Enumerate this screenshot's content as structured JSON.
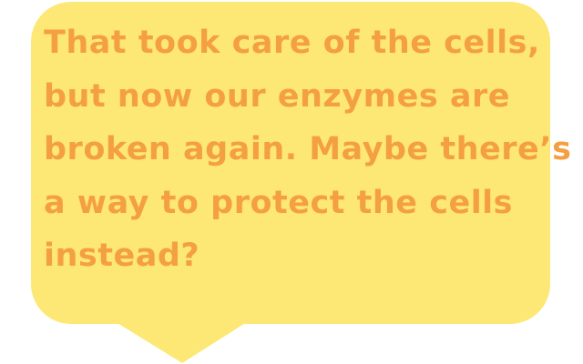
{
  "dialog": {
    "lines": [
      "That took care of the cells,",
      "but now our enzymes are",
      "broken again. Maybe there’s",
      "a way to protect the cells",
      "instead?"
    ]
  },
  "colors": {
    "bubble": "#fde875",
    "text": "#f5a040",
    "background": "#ffffff"
  }
}
